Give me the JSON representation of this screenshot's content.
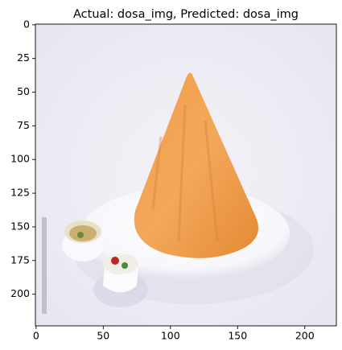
{
  "chart_data": {
    "type": "image",
    "title": "Actual: dosa_img, Predicted: dosa_img",
    "xlim": [
      -0.5,
      223.5
    ],
    "ylim": [
      223.5,
      -0.5
    ],
    "xticks": [
      0,
      50,
      100,
      150,
      200
    ],
    "yticks": [
      0,
      25,
      50,
      75,
      100,
      125,
      150,
      175,
      200
    ]
  }
}
